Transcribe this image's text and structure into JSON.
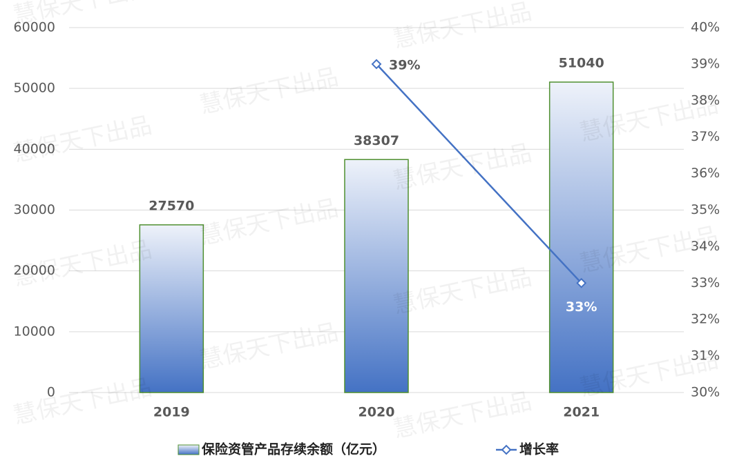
{
  "chart_data": {
    "type": "bar_line",
    "categories": [
      "2019",
      "2020",
      "2021"
    ],
    "series": [
      {
        "name": "保险资管产品存续余额（亿元）",
        "type": "bar",
        "color": "#4472c4",
        "values": [
          27570,
          38307,
          51040
        ]
      },
      {
        "name": "增长率",
        "type": "line",
        "axis": "y2",
        "color": "#4472c4",
        "values": [
          null,
          39,
          33
        ],
        "value_labels": [
          null,
          "39%",
          "33%"
        ]
      }
    ],
    "ylim": [
      0,
      60000
    ],
    "yticks": [
      0,
      10000,
      20000,
      30000,
      40000,
      50000,
      60000
    ],
    "y2lim": [
      30,
      40
    ],
    "y2ticks": [
      {
        "value": 30,
        "label": "30%"
      },
      {
        "value": 31,
        "label": "31%"
      },
      {
        "value": 32,
        "label": "32%"
      },
      {
        "value": 33,
        "label": "33%"
      },
      {
        "value": 34,
        "label": "34%"
      },
      {
        "value": 35,
        "label": "35%"
      },
      {
        "value": 36,
        "label": "36%"
      },
      {
        "value": 37,
        "label": "37%"
      },
      {
        "value": 38,
        "label": "38%"
      },
      {
        "value": 39,
        "label": "39%"
      },
      {
        "value": 40,
        "label": "40%"
      }
    ],
    "grid": true,
    "legend": "bottom",
    "watermark": "慧保天下出品"
  }
}
